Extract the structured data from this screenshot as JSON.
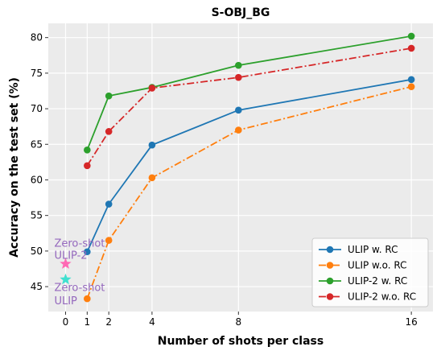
{
  "chart_data": {
    "type": "line",
    "title": "S-OBJ_BG",
    "xlabel": "Number of shots per class",
    "ylabel": "Accuracy on the test set (%)",
    "xlim": [
      -0.8,
      17
    ],
    "ylim": [
      41.5,
      82
    ],
    "x_ticks": [
      0,
      1,
      2,
      4,
      8,
      16
    ],
    "y_ticks": [
      45,
      50,
      55,
      60,
      65,
      70,
      75,
      80
    ],
    "grid": true,
    "background_color": "#ebebeb",
    "legend_position": "lower-right",
    "series": [
      {
        "name": "ULIP w. RC",
        "color": "#1f77b4",
        "linestyle": "solid",
        "x": [
          1,
          2,
          4,
          8,
          16
        ],
        "values": [
          49.9,
          56.6,
          64.9,
          69.8,
          74.1
        ]
      },
      {
        "name": "ULIP w.o. RC",
        "color": "#ff7f0e",
        "linestyle": "dashdot",
        "x": [
          1,
          2,
          4,
          8,
          16
        ],
        "values": [
          43.3,
          51.5,
          60.3,
          67.0,
          73.1
        ]
      },
      {
        "name": "ULIP-2 w. RC",
        "color": "#2ca02c",
        "linestyle": "solid",
        "x": [
          1,
          2,
          4,
          8,
          16
        ],
        "values": [
          64.2,
          71.8,
          73.0,
          76.1,
          80.2
        ]
      },
      {
        "name": "ULIP-2 w.o. RC",
        "color": "#d62728",
        "linestyle": "dashdot",
        "x": [
          1,
          2,
          4,
          8,
          16
        ],
        "values": [
          62.0,
          66.8,
          72.9,
          74.4,
          78.5
        ]
      }
    ],
    "annotations": [
      {
        "lines": [
          "Zero-shot",
          "ULIP-2"
        ],
        "x": 0,
        "y": 48.2,
        "marker": "star",
        "marker_color": "#ff69b4",
        "text_color": "#9467bd",
        "label_y": [
          50.6,
          48.9
        ]
      },
      {
        "lines": [
          "Zero-shot",
          "ULIP"
        ],
        "x": 0,
        "y": 46.0,
        "marker": "star",
        "marker_color": "#40e0d0",
        "text_color": "#9467bd",
        "label_y": [
          44.4,
          42.5
        ]
      }
    ]
  }
}
